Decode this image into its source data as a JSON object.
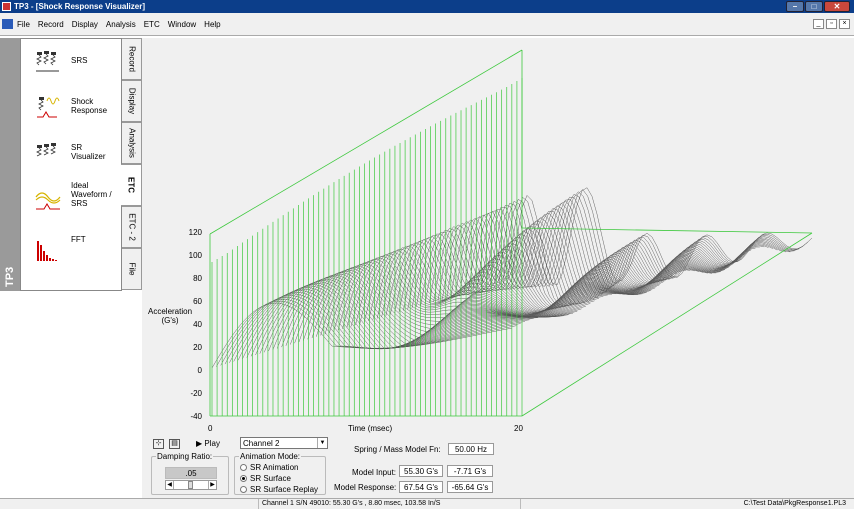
{
  "window": {
    "title": "TP3 - [Shock Response Visualizer]"
  },
  "menu": {
    "items": [
      "File",
      "Record",
      "Display",
      "Analysis",
      "ETC",
      "Window",
      "Help"
    ]
  },
  "sidebar": {
    "brand": "TP3",
    "items": [
      {
        "label": "SRS",
        "icon": "srs-icon"
      },
      {
        "label": "Shock\nResponse",
        "icon": "shock-response-icon"
      },
      {
        "label": "SR\nVisualizer",
        "icon": "sr-visualizer-icon"
      },
      {
        "label": "Ideal\nWaveform /\nSRS",
        "icon": "ideal-waveform-icon"
      },
      {
        "label": "FFT",
        "icon": "fft-icon"
      }
    ],
    "tabs": [
      "Record",
      "Display",
      "Analysis",
      "ETC",
      "ETC - 2",
      "File"
    ],
    "active_tab": "ETC"
  },
  "chart": {
    "ylabel": "Acceleration\n(G's)",
    "xlabel": "Time (msec)",
    "yticks": [
      "120",
      "100",
      "80",
      "60",
      "40",
      "20",
      "0",
      "-20",
      "-40"
    ],
    "xticks": [
      "0",
      "20"
    ]
  },
  "controls": {
    "play_label": "Play",
    "channel": "Channel 2",
    "damping_caption": "Damping Ratio:",
    "damping_value": ".05",
    "animation_caption": "Animation Mode:",
    "modes": [
      "SR Animation",
      "SR Surface",
      "SR Surface Replay"
    ],
    "selected_mode": "SR Surface",
    "fn_label": "Spring / Mass Model Fn:",
    "fn_value": "50.00 Hz",
    "input_label": "Model Input:",
    "input_max": "55.30 G's",
    "input_min": "-7.71 G's",
    "response_label": "Model Response:",
    "response_max": "67.54 G's",
    "response_min": "-65.64 G's"
  },
  "status": {
    "center": "Channel 1 S/N 49010: 55.30 G's , 8.80 msec, 103.58 In/S",
    "right": "C:\\Test Data\\PkgResponse1.PL3"
  },
  "colors": {
    "green": "#3cc83c",
    "title": "#0c3e8a"
  }
}
